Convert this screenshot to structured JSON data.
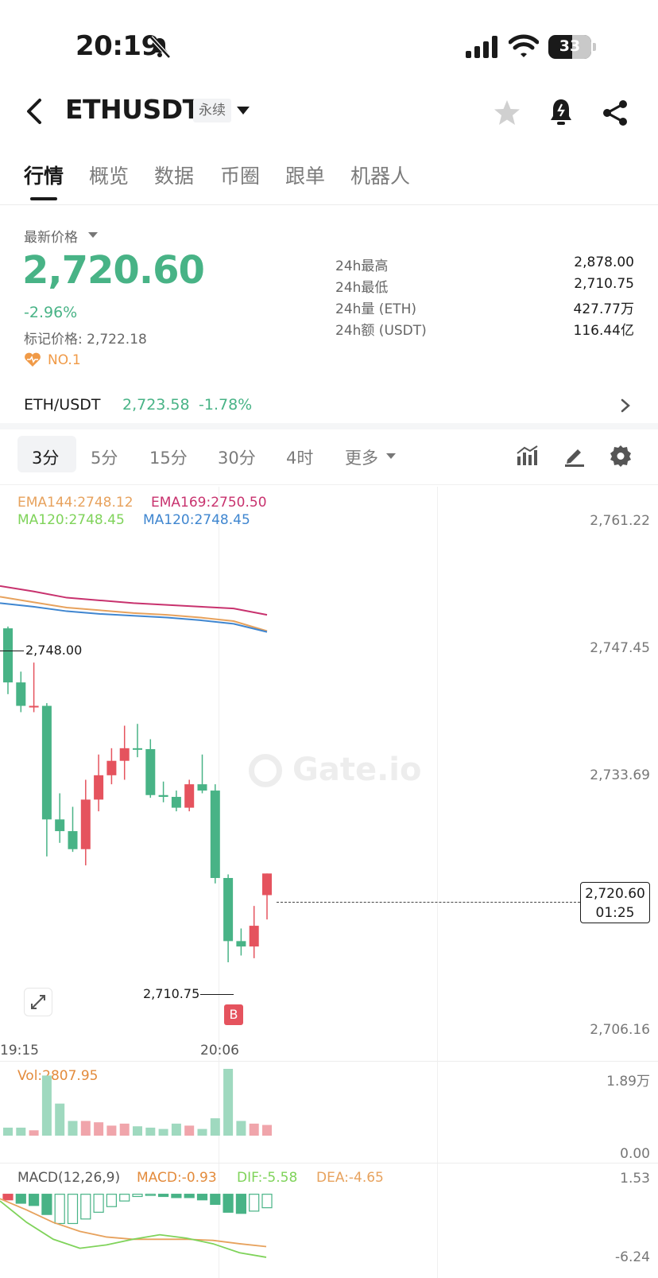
{
  "status_bar": {
    "time": "20:19",
    "battery": "33"
  },
  "header": {
    "symbol": "ETHUSDT",
    "contract_type": "永续"
  },
  "tabs": [
    {
      "label": "行情",
      "active": true
    },
    {
      "label": "概览",
      "active": false
    },
    {
      "label": "数据",
      "active": false
    },
    {
      "label": "币圈",
      "active": false
    },
    {
      "label": "跟单",
      "active": false
    },
    {
      "label": "机器人",
      "active": false
    }
  ],
  "price": {
    "label": "最新价格",
    "last": "2,720.60",
    "change_pct": "-2.96%",
    "mark_price": "标记价格: 2,722.18",
    "rank": "NO.1"
  },
  "stats": [
    {
      "label": "24h最高",
      "value": "2,878.00"
    },
    {
      "label": "24h最低",
      "value": "2,710.75"
    },
    {
      "label": "24h量 (ETH)",
      "value": "427.77万"
    },
    {
      "label": "24h额 (USDT)",
      "value": "116.44亿"
    }
  ],
  "spot": {
    "pair": "ETH/USDT",
    "price": "2,723.58",
    "change": "-1.78%"
  },
  "timeframes": [
    {
      "label": "3分",
      "active": true
    },
    {
      "label": "5分",
      "active": false
    },
    {
      "label": "15分",
      "active": false
    },
    {
      "label": "30分",
      "active": false
    },
    {
      "label": "4时",
      "active": false
    },
    {
      "label": "更多",
      "active": false
    }
  ],
  "indicators": {
    "ema144": "EMA144:2748.12",
    "ema169": "EMA169:2750.50",
    "ma120a": "MA120:2748.45",
    "ma120b": "MA120:2748.45",
    "vol": "Vol:2807.95",
    "macd_title": "MACD(12,26,9)",
    "macd": "MACD:-0.93",
    "dif": "DIF:-5.58",
    "dea": "DEA:-4.65"
  },
  "colors": {
    "up": "#48b386",
    "down": "#e5535e",
    "ema144": "#e7a25d",
    "ema169": "#c8326e",
    "ma_green": "#7fd35a",
    "ma_blue": "#3f86d0",
    "vol_label": "#e38b3c"
  },
  "chart_data": {
    "type": "candlestick",
    "title": "",
    "y_axis_labels": [
      "2,761.22",
      "2,747.45",
      "2,733.69",
      "2,706.16"
    ],
    "ylim": [
      2706.16,
      2761.22
    ],
    "x_axis_labels": [
      "19:15",
      "20:06"
    ],
    "high_marker": "2,748.00",
    "low_marker": "2,710.75",
    "current_price": "2,720.60",
    "countdown": "01:25",
    "trade_marker": "B",
    "candles": [
      {
        "o": 2747.8,
        "h": 2748.0,
        "l": 2740.5,
        "c": 2741.8
      },
      {
        "o": 2741.8,
        "h": 2743.0,
        "l": 2738.5,
        "c": 2739.2
      },
      {
        "o": 2739.2,
        "h": 2744.0,
        "l": 2738.5,
        "c": 2739.2
      },
      {
        "o": 2739.2,
        "h": 2739.5,
        "l": 2722.5,
        "c": 2726.6
      },
      {
        "o": 2726.6,
        "h": 2729.5,
        "l": 2724.0,
        "c": 2725.3
      },
      {
        "o": 2725.3,
        "h": 2728.0,
        "l": 2723.0,
        "c": 2723.3
      },
      {
        "o": 2723.3,
        "h": 2731.0,
        "l": 2721.5,
        "c": 2728.8
      },
      {
        "o": 2728.8,
        "h": 2733.8,
        "l": 2727.5,
        "c": 2731.5
      },
      {
        "o": 2731.5,
        "h": 2734.5,
        "l": 2730.5,
        "c": 2733.1
      },
      {
        "o": 2733.1,
        "h": 2737.0,
        "l": 2731.0,
        "c": 2734.5
      },
      {
        "o": 2734.5,
        "h": 2737.2,
        "l": 2733.5,
        "c": 2734.4
      },
      {
        "o": 2734.4,
        "h": 2735.5,
        "l": 2729.0,
        "c": 2729.3
      },
      {
        "o": 2729.3,
        "h": 2730.8,
        "l": 2728.5,
        "c": 2729.1
      },
      {
        "o": 2729.1,
        "h": 2729.8,
        "l": 2727.5,
        "c": 2727.9
      },
      {
        "o": 2727.9,
        "h": 2731.0,
        "l": 2727.5,
        "c": 2730.5
      },
      {
        "o": 2730.5,
        "h": 2733.8,
        "l": 2729.5,
        "c": 2729.8
      },
      {
        "o": 2729.8,
        "h": 2730.5,
        "l": 2719.5,
        "c": 2720.1
      },
      {
        "o": 2720.1,
        "h": 2720.5,
        "l": 2710.75,
        "c": 2713.1
      },
      {
        "o": 2713.1,
        "h": 2714.5,
        "l": 2711.5,
        "c": 2712.5
      },
      {
        "o": 2712.5,
        "h": 2717.0,
        "l": 2711.2,
        "c": 2714.8
      },
      {
        "o": 2718.2,
        "h": 2720.6,
        "l": 2715.5,
        "c": 2720.6
      }
    ],
    "ema169_line": [
      2752.5,
      2751.9,
      2751.2,
      2750.9,
      2750.6,
      2750.4,
      2750.2,
      2750.0,
      2749.3
    ],
    "ema144_line": [
      2751.3,
      2750.7,
      2750.1,
      2749.8,
      2749.5,
      2749.3,
      2749.0,
      2748.6,
      2747.5
    ],
    "ma120_line": [
      2750.6,
      2750.2,
      2749.7,
      2749.4,
      2749.2,
      2749.0,
      2748.7,
      2748.3,
      2747.4
    ],
    "volume_labels": [
      "1.89万",
      "0.00"
    ],
    "volume": [
      0.12,
      0.12,
      0.08,
      0.9,
      0.48,
      0.22,
      0.22,
      0.2,
      0.15,
      0.18,
      0.14,
      0.12,
      0.1,
      0.18,
      0.15,
      0.1,
      0.26,
      1.0,
      0.22,
      0.18,
      0.16
    ],
    "macd_labels": [
      "1.53",
      "-6.24"
    ],
    "macd_hist": [
      -0.5,
      -0.8,
      -1.0,
      -1.8,
      -2.6,
      -2.6,
      -2.2,
      -1.6,
      -1.1,
      -0.6,
      -0.2,
      0.0,
      -0.2,
      -0.3,
      -0.3,
      -0.5,
      -0.9,
      -1.6,
      -1.7,
      -1.5,
      -1.2
    ],
    "dif_line": [
      -0.6,
      -2.5,
      -4.0,
      -4.8,
      -4.5,
      -4.0,
      -3.6,
      -3.9,
      -4.4,
      -5.2,
      -5.6
    ],
    "dea_line": [
      -0.4,
      -1.4,
      -2.5,
      -3.3,
      -3.8,
      -4.0,
      -4.0,
      -4.0,
      -4.1,
      -4.4,
      -4.65
    ]
  }
}
